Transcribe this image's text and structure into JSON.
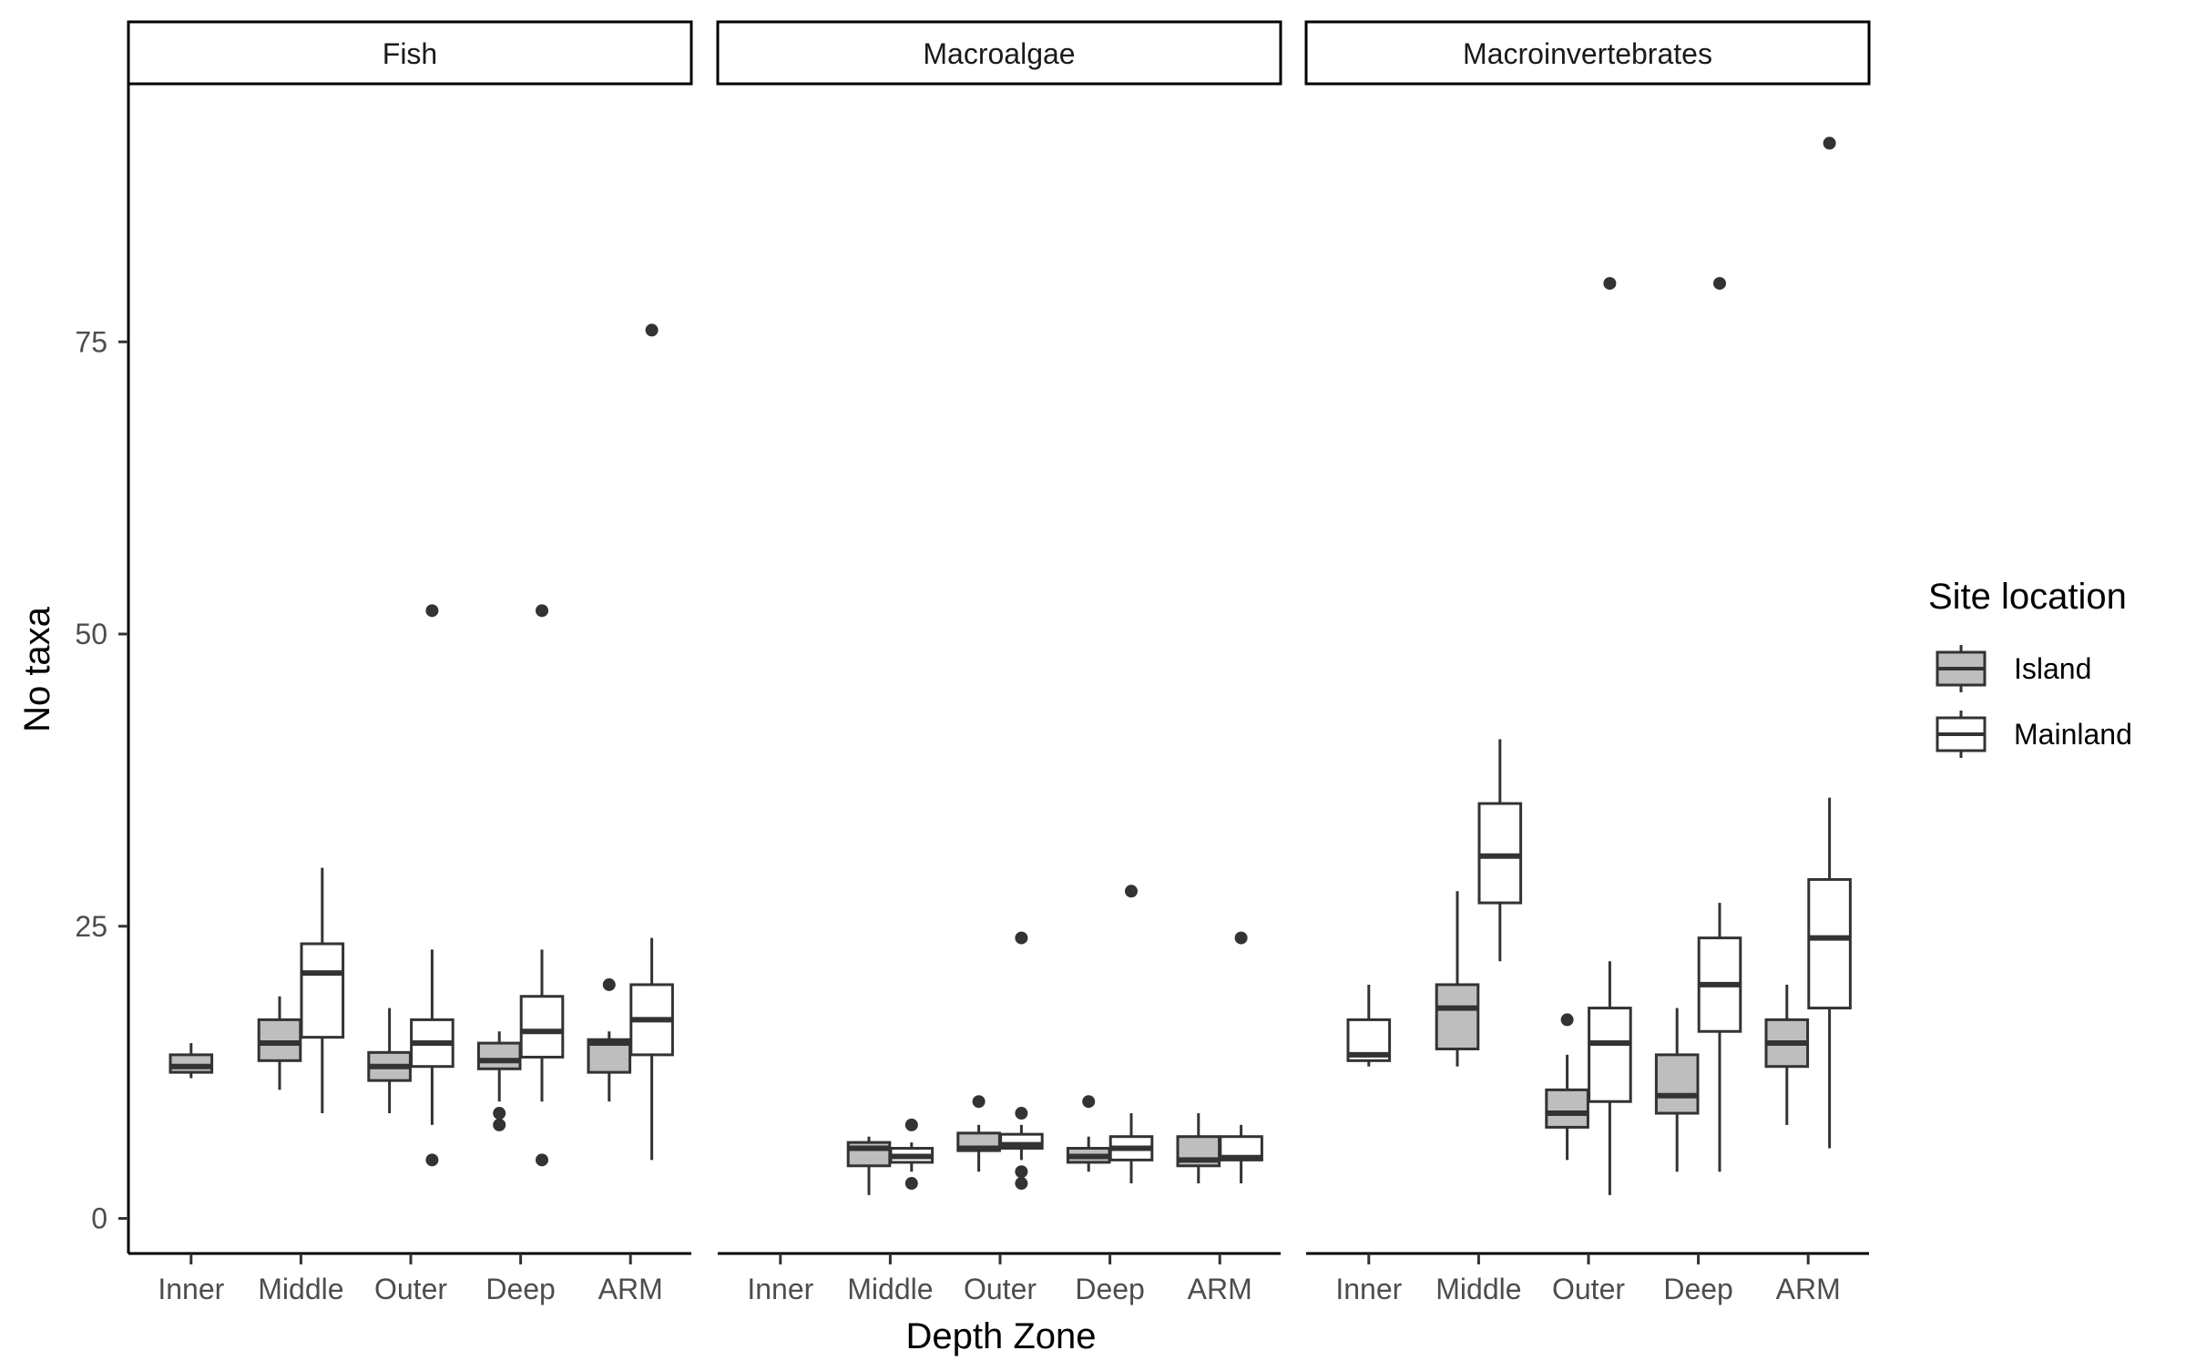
{
  "chart_data": {
    "type": "boxplot",
    "ylabel": "No taxa",
    "xlabel": "Depth Zone",
    "ylim": [
      -3,
      97
    ],
    "yticks": [
      0,
      25,
      50,
      75
    ],
    "categories": [
      "Inner",
      "Middle",
      "Outer",
      "Deep",
      "ARM"
    ],
    "legend": {
      "title": "Site location",
      "placement": "right",
      "entries": [
        {
          "name": "Island",
          "color": "#bebebe"
        },
        {
          "name": "Mainland",
          "color": "#ffffff"
        }
      ]
    },
    "line_color": "#333333",
    "panels": [
      {
        "name": "Fish",
        "boxes": [
          {
            "category": "Inner",
            "group": "Island",
            "low": 12,
            "q1": 12.5,
            "median": 13,
            "q3": 14,
            "high": 15,
            "outliers": []
          },
          {
            "category": "Middle",
            "group": "Island",
            "low": 11,
            "q1": 13.5,
            "median": 15,
            "q3": 17,
            "high": 19,
            "outliers": []
          },
          {
            "category": "Middle",
            "group": "Mainland",
            "low": 9,
            "q1": 15.5,
            "median": 21,
            "q3": 23.5,
            "high": 30,
            "outliers": []
          },
          {
            "category": "Outer",
            "group": "Island",
            "low": 9,
            "q1": 11.8,
            "median": 13,
            "q3": 14.2,
            "high": 18,
            "outliers": []
          },
          {
            "category": "Outer",
            "group": "Mainland",
            "low": 8,
            "q1": 13,
            "median": 15,
            "q3": 17,
            "high": 23,
            "outliers": [
              52,
              5
            ]
          },
          {
            "category": "Deep",
            "group": "Island",
            "low": 10,
            "q1": 12.8,
            "median": 13.5,
            "q3": 15,
            "high": 16,
            "outliers": [
              9,
              8
            ]
          },
          {
            "category": "Deep",
            "group": "Mainland",
            "low": 10,
            "q1": 13.8,
            "median": 16,
            "q3": 19,
            "high": 23,
            "outliers": [
              52,
              5
            ]
          },
          {
            "category": "ARM",
            "group": "Island",
            "low": 10,
            "q1": 12.5,
            "median": 15,
            "q3": 15.3,
            "high": 16,
            "outliers": [
              20
            ]
          },
          {
            "category": "ARM",
            "group": "Mainland",
            "low": 5,
            "q1": 14,
            "median": 17,
            "q3": 20,
            "high": 24,
            "outliers": [
              76
            ]
          }
        ]
      },
      {
        "name": "Macroalgae",
        "boxes": [
          {
            "category": "Middle",
            "group": "Island",
            "low": 2,
            "q1": 4.5,
            "median": 6,
            "q3": 6.5,
            "high": 7,
            "outliers": []
          },
          {
            "category": "Middle",
            "group": "Mainland",
            "low": 4,
            "q1": 4.8,
            "median": 5.3,
            "q3": 6,
            "high": 6.5,
            "outliers": [
              8,
              3
            ]
          },
          {
            "category": "Outer",
            "group": "Island",
            "low": 4,
            "q1": 5.8,
            "median": 6,
            "q3": 7.3,
            "high": 8,
            "outliers": [
              10
            ]
          },
          {
            "category": "Outer",
            "group": "Mainland",
            "low": 5,
            "q1": 6,
            "median": 6.3,
            "q3": 7.2,
            "high": 8,
            "outliers": [
              24,
              9,
              4,
              3
            ]
          },
          {
            "category": "Deep",
            "group": "Island",
            "low": 4,
            "q1": 4.8,
            "median": 5.3,
            "q3": 6,
            "high": 7,
            "outliers": [
              10
            ]
          },
          {
            "category": "Deep",
            "group": "Mainland",
            "low": 3,
            "q1": 5,
            "median": 6,
            "q3": 7,
            "high": 9,
            "outliers": [
              28
            ]
          },
          {
            "category": "ARM",
            "group": "Island",
            "low": 3,
            "q1": 4.5,
            "median": 5,
            "q3": 7,
            "high": 9,
            "outliers": []
          },
          {
            "category": "ARM",
            "group": "Mainland",
            "low": 3,
            "q1": 5,
            "median": 5.2,
            "q3": 7,
            "high": 8,
            "outliers": [
              24
            ]
          }
        ]
      },
      {
        "name": "Macroinvertebrates",
        "boxes": [
          {
            "category": "Inner",
            "group": "Mainland",
            "low": 13,
            "q1": 13.5,
            "median": 14,
            "q3": 17,
            "high": 20,
            "outliers": []
          },
          {
            "category": "Middle",
            "group": "Island",
            "low": 13,
            "q1": 14.5,
            "median": 18,
            "q3": 20,
            "high": 28,
            "outliers": []
          },
          {
            "category": "Middle",
            "group": "Mainland",
            "low": 22,
            "q1": 27,
            "median": 31,
            "q3": 35.5,
            "high": 41,
            "outliers": []
          },
          {
            "category": "Outer",
            "group": "Island",
            "low": 5,
            "q1": 7.8,
            "median": 9,
            "q3": 11,
            "high": 14,
            "outliers": [
              17
            ]
          },
          {
            "category": "Outer",
            "group": "Mainland",
            "low": 2,
            "q1": 10,
            "median": 15,
            "q3": 18,
            "high": 22,
            "outliers": [
              80
            ]
          },
          {
            "category": "Deep",
            "group": "Island",
            "low": 4,
            "q1": 9,
            "median": 10.5,
            "q3": 14,
            "high": 18,
            "outliers": []
          },
          {
            "category": "Deep",
            "group": "Mainland",
            "low": 4,
            "q1": 16,
            "median": 20,
            "q3": 24,
            "high": 27,
            "outliers": [
              80
            ]
          },
          {
            "category": "ARM",
            "group": "Island",
            "low": 8,
            "q1": 13,
            "median": 15,
            "q3": 17,
            "high": 20,
            "outliers": []
          },
          {
            "category": "ARM",
            "group": "Mainland",
            "low": 6,
            "q1": 18,
            "median": 24,
            "q3": 29,
            "high": 36,
            "outliers": [
              92
            ]
          }
        ]
      }
    ]
  }
}
